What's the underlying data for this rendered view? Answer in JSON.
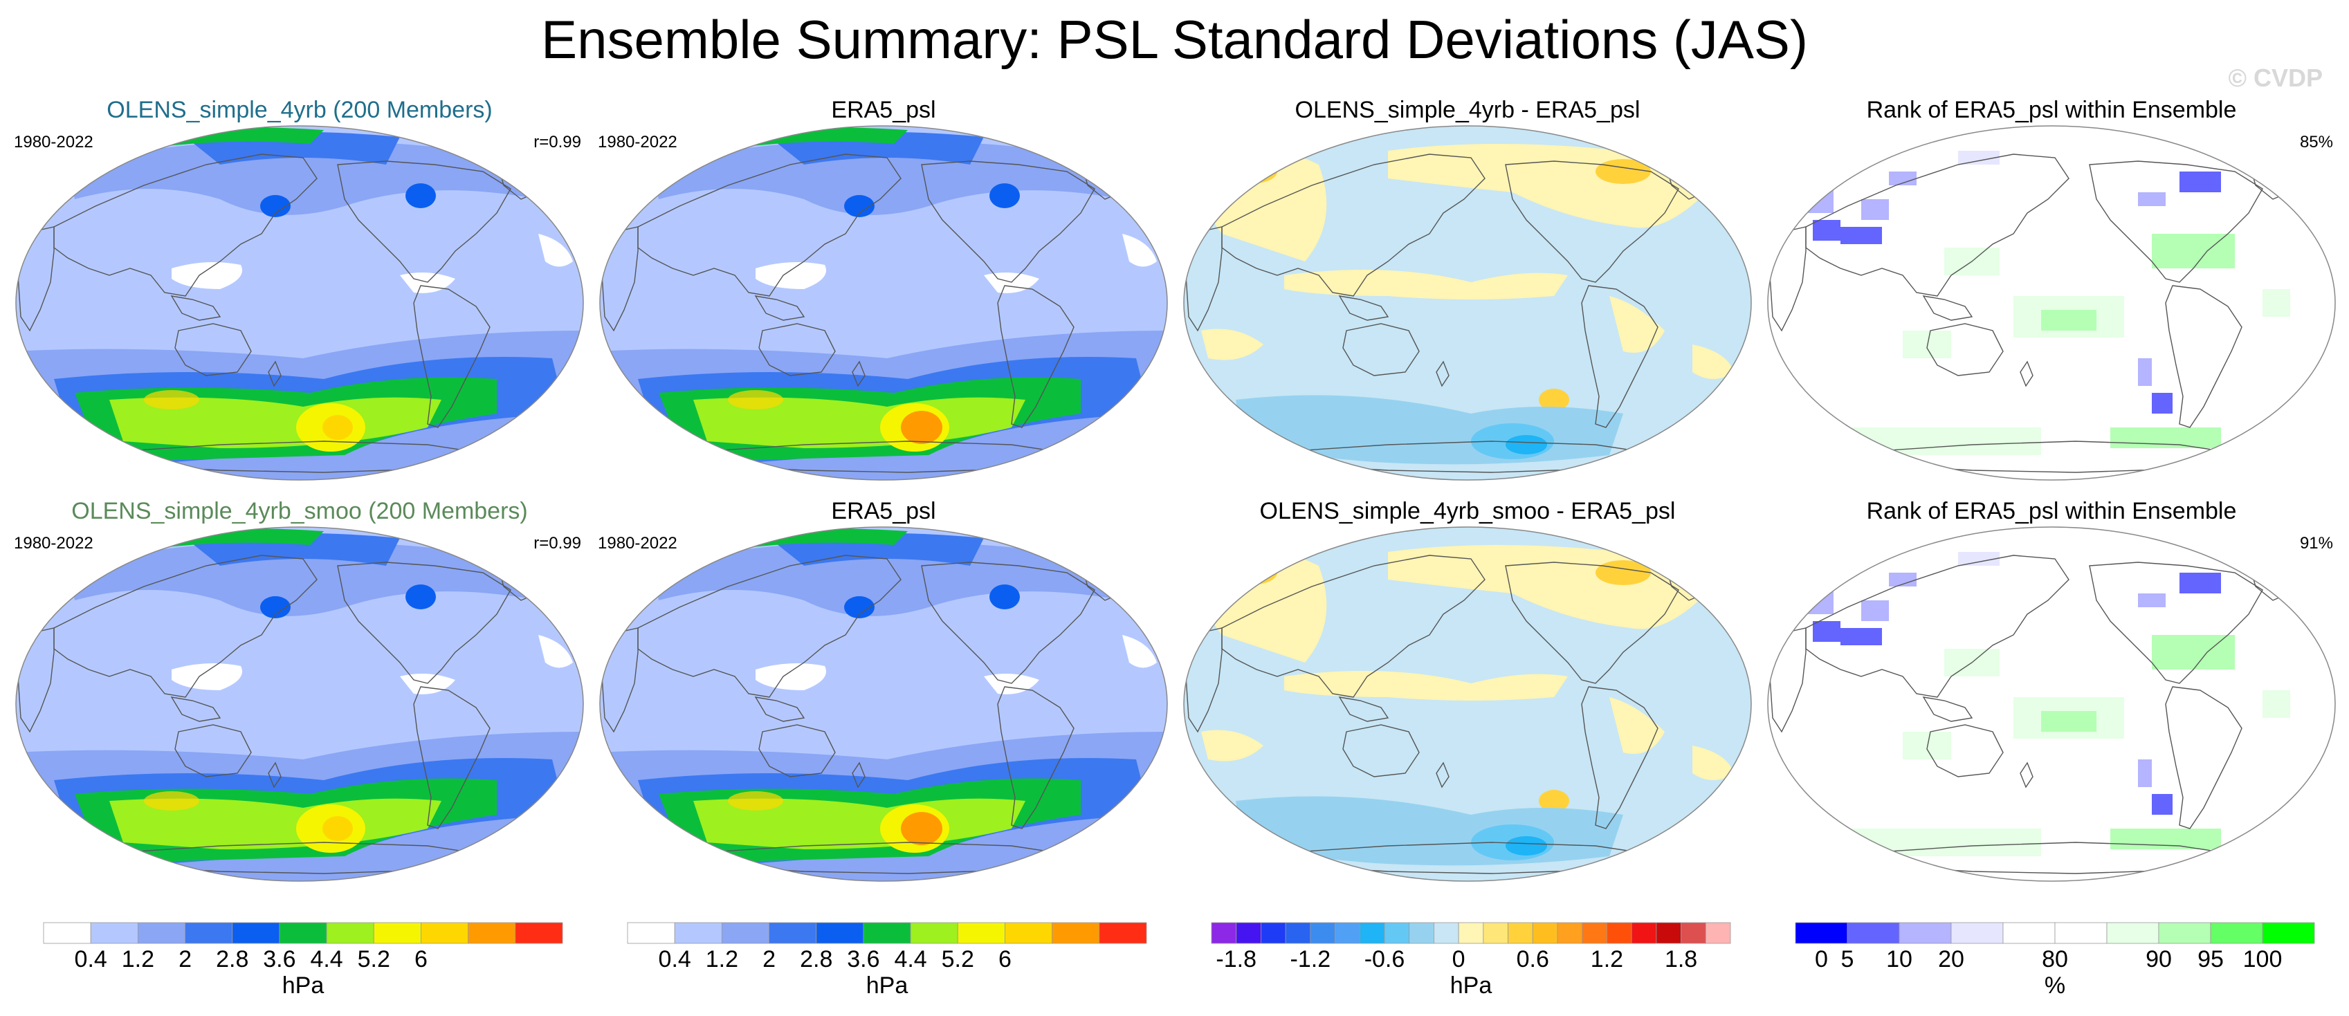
{
  "title": "Ensemble Summary: PSL Standard Deviations (JAS)",
  "watermark": "© CVDP",
  "colors": {
    "model1_title": "#1f6e8c",
    "model2_title": "#5a8a5a",
    "continent_line": "#555555"
  },
  "panels": [
    {
      "id": "p11",
      "title": "OLENS_simple_4yrb (200 Members)",
      "title_color": "#1f6e8c",
      "left": "1980-2022",
      "right": "r=0.99",
      "kind": "std"
    },
    {
      "id": "p12",
      "title": "ERA5_psl",
      "title_color": "#000000",
      "left": "1980-2022",
      "right": "",
      "kind": "std2"
    },
    {
      "id": "p13",
      "title": "OLENS_simple_4yrb - ERA5_psl",
      "title_color": "#000000",
      "left": "",
      "right": "",
      "kind": "diff"
    },
    {
      "id": "p14",
      "title": "Rank of ERA5_psl within Ensemble",
      "title_color": "#000000",
      "left": "",
      "right": "85%",
      "kind": "rank"
    },
    {
      "id": "p21",
      "title": "OLENS_simple_4yrb_smoo (200 Members)",
      "title_color": "#5a8a5a",
      "left": "1980-2022",
      "right": "r=0.99",
      "kind": "std"
    },
    {
      "id": "p22",
      "title": "ERA5_psl",
      "title_color": "#000000",
      "left": "1980-2022",
      "right": "",
      "kind": "std2"
    },
    {
      "id": "p23",
      "title": "OLENS_simple_4yrb_smoo - ERA5_psl",
      "title_color": "#000000",
      "left": "",
      "right": "",
      "kind": "diff"
    },
    {
      "id": "p24",
      "title": "Rank of ERA5_psl within Ensemble",
      "title_color": "#000000",
      "left": "",
      "right": "91%",
      "kind": "rank"
    }
  ],
  "colorbars": [
    {
      "unit": "hPa",
      "colors": [
        "#ffffff",
        "#b4c8ff",
        "#8aa6f5",
        "#3c78f0",
        "#0a5ff0",
        "#0abe3c",
        "#9ef01e",
        "#f5f500",
        "#ffd700",
        "#ff9b00",
        "#ff2d14"
      ],
      "labels": [
        "0.4",
        "1.2",
        "2",
        "2.8",
        "3.6",
        "4.4",
        "5.2",
        "6"
      ],
      "label_boundaries": [
        1,
        2,
        3,
        4,
        5,
        6,
        7,
        8
      ]
    },
    {
      "unit": "hPa",
      "colors": [
        "#ffffff",
        "#b4c8ff",
        "#8aa6f5",
        "#3c78f0",
        "#0a5ff0",
        "#0abe3c",
        "#9ef01e",
        "#f5f500",
        "#ffd700",
        "#ff9b00",
        "#ff2d14"
      ],
      "labels": [
        "0.4",
        "1.2",
        "2",
        "2.8",
        "3.6",
        "4.4",
        "5.2",
        "6"
      ],
      "label_boundaries": [
        1,
        2,
        3,
        4,
        5,
        6,
        7,
        8
      ]
    },
    {
      "unit": "hPa",
      "colors": [
        "#8c28e6",
        "#4614f0",
        "#1e3cf5",
        "#2864f0",
        "#3c8cf0",
        "#50a0f5",
        "#1eb4f5",
        "#64c8f5",
        "#96d2f0",
        "#c8e6f5",
        "#fff5b4",
        "#ffe678",
        "#ffd23c",
        "#ffbe1e",
        "#ffa01e",
        "#ff7814",
        "#ff500a",
        "#f01414",
        "#c80a0a",
        "#dc5050",
        "#ffb4b4"
      ],
      "labels": [
        "-1.8",
        "-1.2",
        "-0.6",
        "0",
        "0.6",
        "1.2",
        "1.8"
      ],
      "label_boundaries": [
        1,
        4,
        7,
        10,
        13,
        16,
        19
      ]
    },
    {
      "unit": "%",
      "colors": [
        "#0000ff",
        "#6464ff",
        "#b4b4ff",
        "#e6e6ff",
        "#ffffff",
        "#ffffff",
        "#e6ffe6",
        "#b4ffb4",
        "#64ff64",
        "#00ff00"
      ],
      "labels": [
        "0",
        "5",
        "10",
        "20",
        "80",
        "90",
        "95",
        "100"
      ],
      "label_boundaries": [
        0.5,
        1,
        2,
        3,
        5,
        7,
        8,
        9
      ]
    }
  ]
}
